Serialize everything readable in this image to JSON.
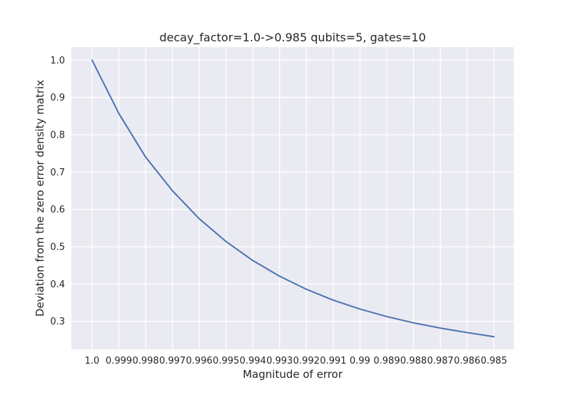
{
  "chart_data": {
    "type": "line",
    "title": "decay_factor=1.0->0.985 qubits=5, gates=10",
    "xlabel": "Magnitude of error",
    "ylabel": "Deviation from the zero error density matrix",
    "categories": [
      "1.0",
      "0.999",
      "0.998",
      "0.997",
      "0.996",
      "0.995",
      "0.994",
      "0.993",
      "0.992",
      "0.991",
      "0.99",
      "0.989",
      "0.988",
      "0.987",
      "0.986",
      "0.985"
    ],
    "series": [
      {
        "values": [
          1.0,
          0.857,
          0.74,
          0.65,
          0.575,
          0.514,
          0.463,
          0.421,
          0.386,
          0.357,
          0.333,
          0.313,
          0.296,
          0.282,
          0.27,
          0.259
        ],
        "color": "#4c72b0"
      }
    ],
    "yticks": [
      "0.3",
      "0.4",
      "0.5",
      "0.6",
      "0.7",
      "0.8",
      "0.9",
      "1.0"
    ],
    "ylim": [
      0.225,
      1.035
    ],
    "grid": true,
    "style": {
      "plot_background": "#eaeaf2",
      "grid_color": "#ffffff"
    }
  }
}
